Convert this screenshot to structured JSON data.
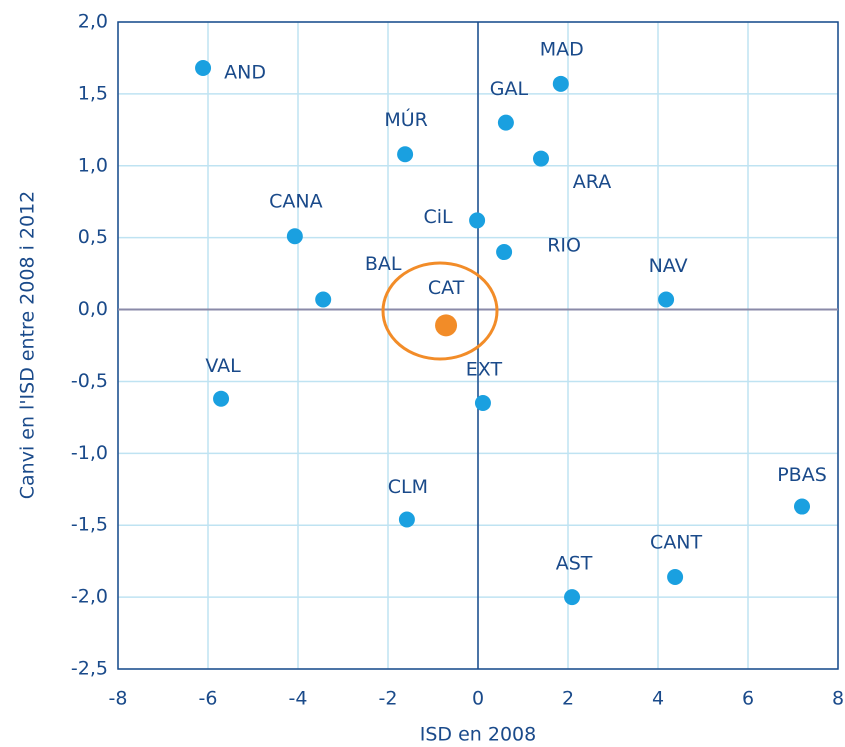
{
  "chart_data": {
    "type": "scatter",
    "x_label": "ISD en 2008",
    "y_label": "Canvi en l'ISD entre 2008 i 2012",
    "labels": [
      "AND",
      "VAL",
      "CANA",
      "BAL",
      "MÚR",
      "CLM",
      "CAT",
      "CiL",
      "EXT",
      "GAL",
      "RIO",
      "ARA",
      "MAD",
      "AST",
      "NAV",
      "CANT",
      "PBAS"
    ],
    "x": [
      -6.11,
      -5.71,
      -4.07,
      -3.44,
      -1.62,
      -1.58,
      -0.71,
      -0.02,
      0.11,
      0.62,
      0.58,
      1.4,
      1.84,
      2.09,
      4.18,
      4.38,
      7.2
    ],
    "series": [
      {
        "values": [
          1.68,
          -0.62,
          0.51,
          0.07,
          1.08,
          -1.46,
          -0.11,
          0.62,
          -0.65,
          1.3,
          0.4,
          1.05,
          1.57,
          -2.0,
          0.07,
          -1.86,
          -1.37
        ]
      }
    ],
    "colors": [
      "#1aa0e0",
      "#1aa0e0",
      "#1aa0e0",
      "#1aa0e0",
      "#1aa0e0",
      "#1aa0e0",
      "#f28c28",
      "#1aa0e0",
      "#1aa0e0",
      "#1aa0e0",
      "#1aa0e0",
      "#1aa0e0",
      "#1aa0e0",
      "#1aa0e0",
      "#1aa0e0",
      "#1aa0e0",
      "#1aa0e0"
    ],
    "xlim": [
      -8,
      8
    ],
    "xticks": [
      -8,
      -6,
      -4,
      -2,
      0,
      2,
      4,
      6,
      8
    ],
    "ylim": [
      -2.5,
      2.0
    ],
    "yticks": [
      {
        "value": -2.5,
        "label": "-2,5"
      },
      {
        "value": -2.0,
        "label": "-2,0"
      },
      {
        "value": -1.5,
        "label": "-1,5"
      },
      {
        "value": -1.0,
        "label": "-1,0"
      },
      {
        "value": -0.5,
        "label": "-0,5"
      },
      {
        "value": 0,
        "label": "0,0"
      },
      {
        "value": 0.5,
        "label": "0,5"
      },
      {
        "value": 1.0,
        "label": "1,0"
      },
      {
        "value": 1.5,
        "label": "1,5"
      },
      {
        "value": 2.0,
        "label": "2,0"
      }
    ],
    "grid": true
  }
}
